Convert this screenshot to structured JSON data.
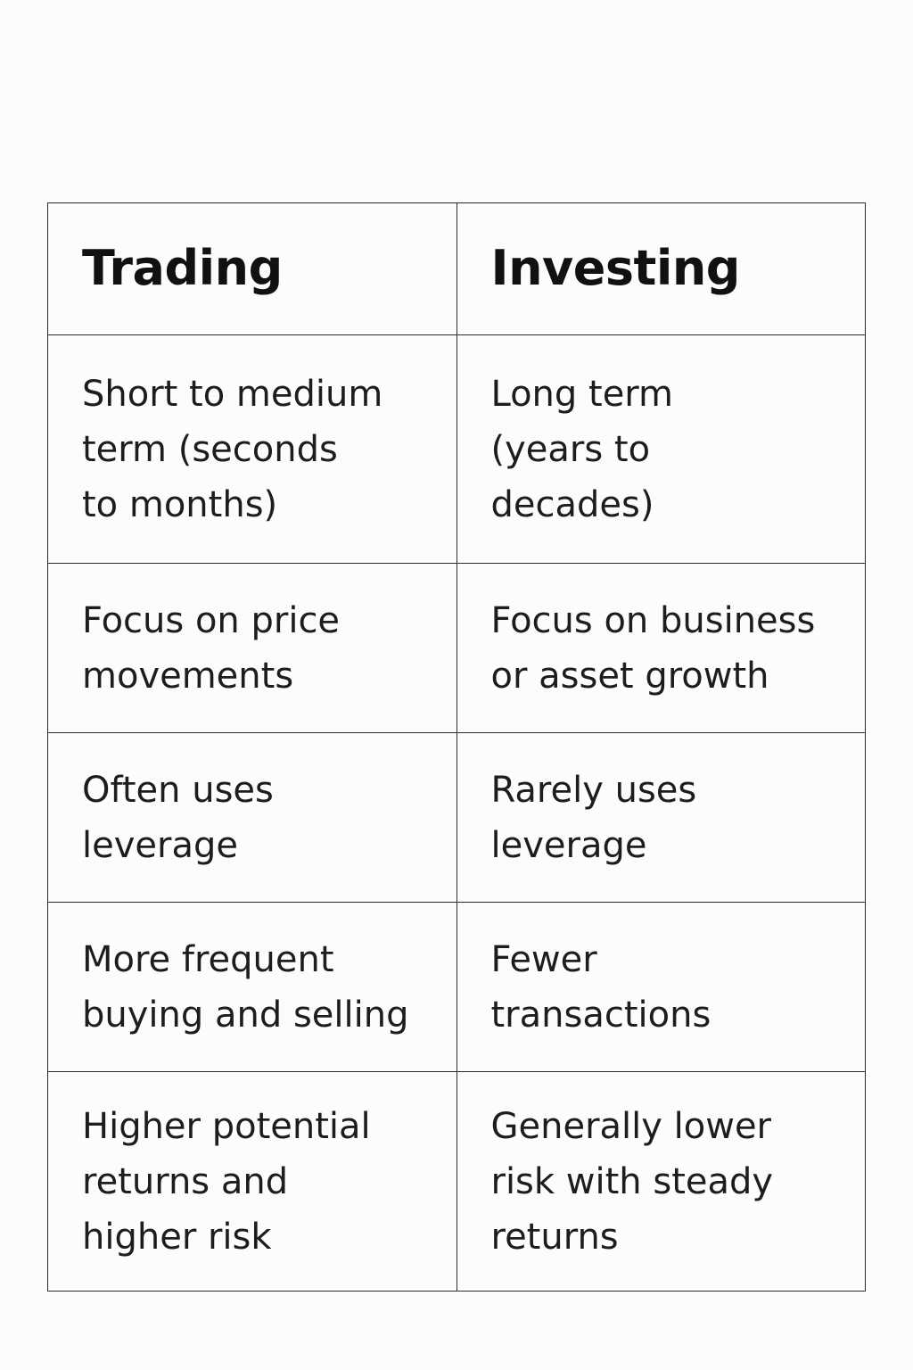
{
  "table": {
    "headers": [
      "Trading",
      "Investing"
    ],
    "rows": [
      [
        "Short to medium\nterm (seconds\nto months)",
        "Long term\n(years to\ndecades)"
      ],
      [
        "Focus on price\nmovements",
        "Focus on business\nor asset growth"
      ],
      [
        "Often uses\nleverage",
        "Rarely uses\nleverage"
      ],
      [
        "More frequent\nbuying and selling",
        "Fewer\ntransactions"
      ],
      [
        "Higher potential\nreturns and\nhigher risk",
        "Generally lower\nrisk with steady\nreturns"
      ]
    ]
  }
}
